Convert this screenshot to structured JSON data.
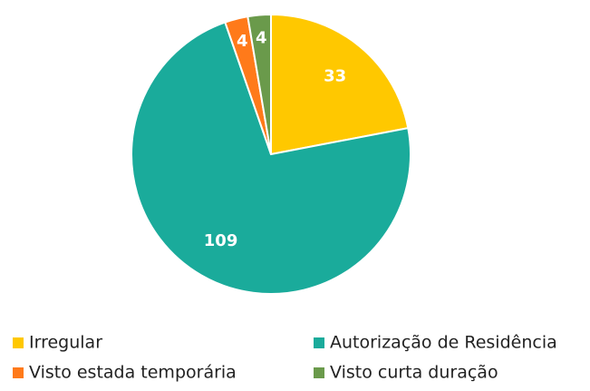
{
  "chart_data": {
    "type": "pie",
    "categories": [
      "Irregular",
      "Autorização de Residência",
      "Visto estada temporária",
      "Visto curta duração"
    ],
    "values": [
      33,
      109,
      4,
      4
    ],
    "colors": [
      "#ffc800",
      "#1aab9b",
      "#ff7a1a",
      "#6a9a4b"
    ],
    "legend": "bottom"
  }
}
